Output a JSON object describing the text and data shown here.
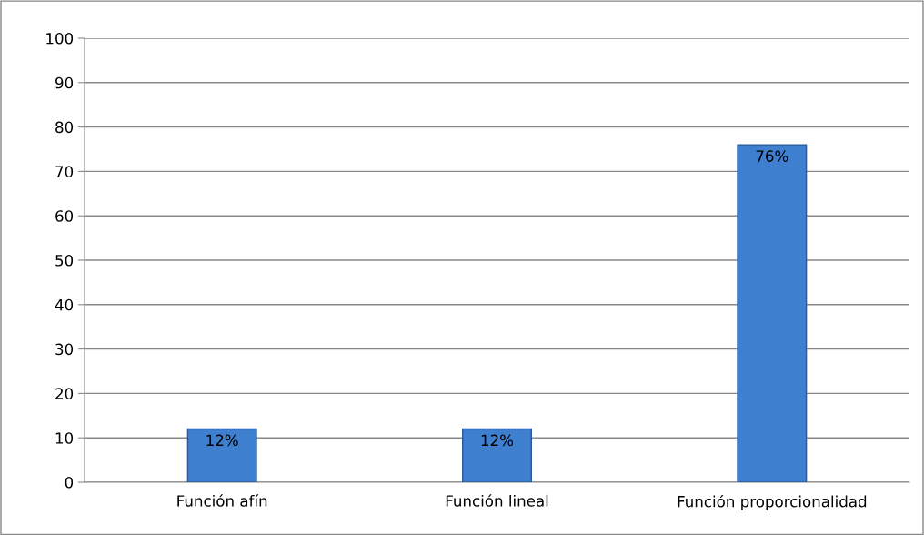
{
  "chart_data": {
    "type": "bar",
    "categories": [
      "Función afín",
      "Función lineal",
      "Función proporcionalidad"
    ],
    "values": [
      12,
      12,
      76
    ],
    "value_labels": [
      "12%",
      "12%",
      "76%"
    ],
    "color": "#3f7fcf",
    "ylim": [
      0,
      100
    ],
    "yticks": [
      0,
      10,
      20,
      30,
      40,
      50,
      60,
      70,
      80,
      90,
      100
    ],
    "grid": "y",
    "legend": false
  }
}
